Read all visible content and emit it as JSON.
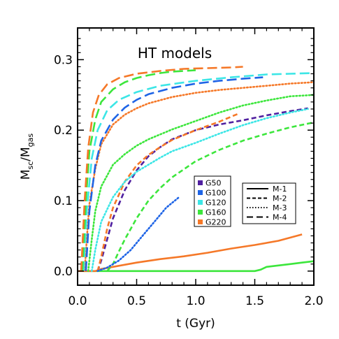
{
  "chart_data": {
    "type": "line",
    "title": "HT models",
    "xlabel": "t (Gyr)",
    "ylabel": {
      "main": "M",
      "sub1": "sc",
      "sep": "/M",
      "sub2": "gas"
    },
    "xlim": [
      0,
      2.0
    ],
    "ylim": [
      -0.02,
      0.345
    ],
    "xticks": [
      0.0,
      0.5,
      1.0,
      1.5,
      2.0
    ],
    "xtick_labels": [
      "0.0",
      "0.5",
      "1.0",
      "1.5",
      "2.0"
    ],
    "yticks": [
      0.0,
      0.1,
      0.2,
      0.3
    ],
    "ytick_labels": [
      "0.0",
      "0.1",
      "0.2",
      "0.3"
    ],
    "grid": false,
    "galaxy_legend": {
      "position": "center-right",
      "items": [
        {
          "label": "G50",
          "color": "#5020A0"
        },
        {
          "label": "G100",
          "color": "#1E64E6"
        },
        {
          "label": "G120",
          "color": "#3CE6E6"
        },
        {
          "label": "G160",
          "color": "#3CE63C"
        },
        {
          "label": "G220",
          "color": "#F57828"
        }
      ]
    },
    "model_legend": {
      "position": "right",
      "items": [
        {
          "label": "M-1",
          "dash": "solid"
        },
        {
          "label": "M-2",
          "dash": "dashed"
        },
        {
          "label": "M-3",
          "dash": "dotted"
        },
        {
          "label": "M-4",
          "dash": "longdash"
        }
      ]
    },
    "series": [
      {
        "galaxy": "G160",
        "model": "M-1",
        "color": "#3CE63C",
        "dash": "solid",
        "x": [
          0.05,
          1.5,
          1.55,
          1.6,
          1.7,
          1.8,
          1.9,
          2.0
        ],
        "y": [
          0.0,
          0.0,
          0.002,
          0.006,
          0.008,
          0.01,
          0.012,
          0.014
        ]
      },
      {
        "galaxy": "G220",
        "model": "M-1",
        "color": "#F57828",
        "dash": "solid",
        "x": [
          0.0,
          0.15,
          0.2,
          0.3,
          0.5,
          0.7,
          0.9,
          1.1,
          1.3,
          1.5,
          1.7,
          1.9
        ],
        "y": [
          0.0,
          0.0,
          0.003,
          0.006,
          0.012,
          0.017,
          0.021,
          0.026,
          0.032,
          0.037,
          0.043,
          0.052
        ]
      },
      {
        "galaxy": "G50",
        "model": "M-2",
        "color": "#5020A0",
        "dash": "dashed",
        "x": [
          0.17,
          0.2,
          0.25,
          0.3,
          0.4,
          0.5,
          0.6,
          0.7,
          0.8,
          1.0,
          1.2,
          1.4,
          1.6,
          1.8,
          1.95
        ],
        "y": [
          0.0,
          0.015,
          0.045,
          0.075,
          0.115,
          0.143,
          0.163,
          0.176,
          0.187,
          0.2,
          0.208,
          0.214,
          0.221,
          0.227,
          0.231
        ]
      },
      {
        "galaxy": "G160",
        "model": "M-2",
        "color": "#3CE63C",
        "dash": "dashed",
        "x": [
          0.25,
          0.3,
          0.35,
          0.4,
          0.5,
          0.6,
          0.7,
          0.8,
          1.0,
          1.2,
          1.4,
          1.6,
          1.8,
          2.0
        ],
        "y": [
          0.0,
          0.01,
          0.028,
          0.045,
          0.075,
          0.1,
          0.118,
          0.133,
          0.156,
          0.172,
          0.185,
          0.195,
          0.204,
          0.211
        ]
      },
      {
        "galaxy": "G220",
        "model": "M-2",
        "color": "#F57828",
        "dash": "dashed",
        "x": [
          0.17,
          0.2,
          0.25,
          0.3,
          0.4,
          0.5,
          0.6,
          0.7,
          0.8,
          1.0,
          1.2,
          1.37
        ],
        "y": [
          0.0,
          0.02,
          0.06,
          0.09,
          0.127,
          0.15,
          0.165,
          0.176,
          0.186,
          0.2,
          0.212,
          0.224
        ]
      },
      {
        "galaxy": "G100",
        "model": "M-3",
        "color": "#1E64E6",
        "dash": "dotted",
        "x": [
          0.17,
          0.25,
          0.35,
          0.45,
          0.55,
          0.65,
          0.75,
          0.86
        ],
        "y": [
          0.0,
          0.005,
          0.015,
          0.03,
          0.05,
          0.07,
          0.09,
          0.105
        ]
      },
      {
        "galaxy": "G120",
        "model": "M-3",
        "color": "#3CE6E6",
        "dash": "dotted",
        "x": [
          0.12,
          0.15,
          0.2,
          0.3,
          0.4,
          0.5,
          0.6,
          0.7,
          0.8,
          1.0,
          1.2,
          1.4,
          1.6,
          1.8,
          1.95
        ],
        "y": [
          0.0,
          0.03,
          0.07,
          0.105,
          0.127,
          0.141,
          0.151,
          0.161,
          0.17,
          0.182,
          0.195,
          0.207,
          0.217,
          0.225,
          0.23
        ]
      },
      {
        "galaxy": "G160",
        "model": "M-3",
        "color": "#3CE63C",
        "dash": "dotted",
        "x": [
          0.09,
          0.12,
          0.15,
          0.2,
          0.3,
          0.4,
          0.5,
          0.6,
          0.8,
          1.0,
          1.2,
          1.4,
          1.6,
          1.8,
          2.0
        ],
        "y": [
          0.0,
          0.045,
          0.085,
          0.12,
          0.151,
          0.166,
          0.178,
          0.187,
          0.201,
          0.213,
          0.225,
          0.235,
          0.242,
          0.248,
          0.25
        ]
      },
      {
        "galaxy": "G220",
        "model": "M-3",
        "color": "#F57828",
        "dash": "dotted",
        "x": [
          0.06,
          0.08,
          0.1,
          0.15,
          0.2,
          0.3,
          0.4,
          0.5,
          0.6,
          0.8,
          1.0,
          1.2,
          1.4,
          1.6,
          1.8,
          2.0
        ],
        "y": [
          0.0,
          0.05,
          0.095,
          0.145,
          0.18,
          0.208,
          0.222,
          0.231,
          0.238,
          0.247,
          0.253,
          0.257,
          0.26,
          0.263,
          0.266,
          0.268
        ]
      },
      {
        "galaxy": "G100",
        "model": "M-4",
        "color": "#1E64E6",
        "dash": "longdash",
        "x": [
          0.07,
          0.1,
          0.15,
          0.2,
          0.3,
          0.4,
          0.5,
          0.6,
          0.8,
          1.0,
          1.2,
          1.4,
          1.57
        ],
        "y": [
          0.0,
          0.085,
          0.15,
          0.185,
          0.215,
          0.232,
          0.243,
          0.251,
          0.26,
          0.266,
          0.27,
          0.273,
          0.275
        ]
      },
      {
        "galaxy": "G120",
        "model": "M-4",
        "color": "#3CE6E6",
        "dash": "longdash",
        "x": [
          0.05,
          0.08,
          0.12,
          0.17,
          0.25,
          0.35,
          0.5,
          0.7,
          1.0,
          1.3,
          1.6,
          1.8,
          2.0
        ],
        "y": [
          0.0,
          0.09,
          0.16,
          0.2,
          0.228,
          0.243,
          0.254,
          0.263,
          0.27,
          0.275,
          0.279,
          0.28,
          0.281
        ]
      },
      {
        "galaxy": "G160",
        "model": "M-4",
        "color": "#3CE63C",
        "dash": "longdash",
        "x": [
          0.04,
          0.07,
          0.1,
          0.15,
          0.2,
          0.3,
          0.4,
          0.5,
          0.6,
          0.7,
          0.8,
          0.9,
          1.0
        ],
        "y": [
          0.0,
          0.1,
          0.17,
          0.215,
          0.24,
          0.258,
          0.268,
          0.274,
          0.278,
          0.281,
          0.283,
          0.284,
          0.285
        ]
      },
      {
        "galaxy": "G220",
        "model": "M-4",
        "color": "#F57828",
        "dash": "longdash",
        "x": [
          0.03,
          0.06,
          0.09,
          0.13,
          0.18,
          0.25,
          0.35,
          0.5,
          0.7,
          0.9,
          1.1,
          1.3,
          1.4
        ],
        "y": [
          0.0,
          0.1,
          0.175,
          0.225,
          0.25,
          0.265,
          0.274,
          0.28,
          0.284,
          0.287,
          0.288,
          0.289,
          0.29
        ]
      }
    ]
  }
}
